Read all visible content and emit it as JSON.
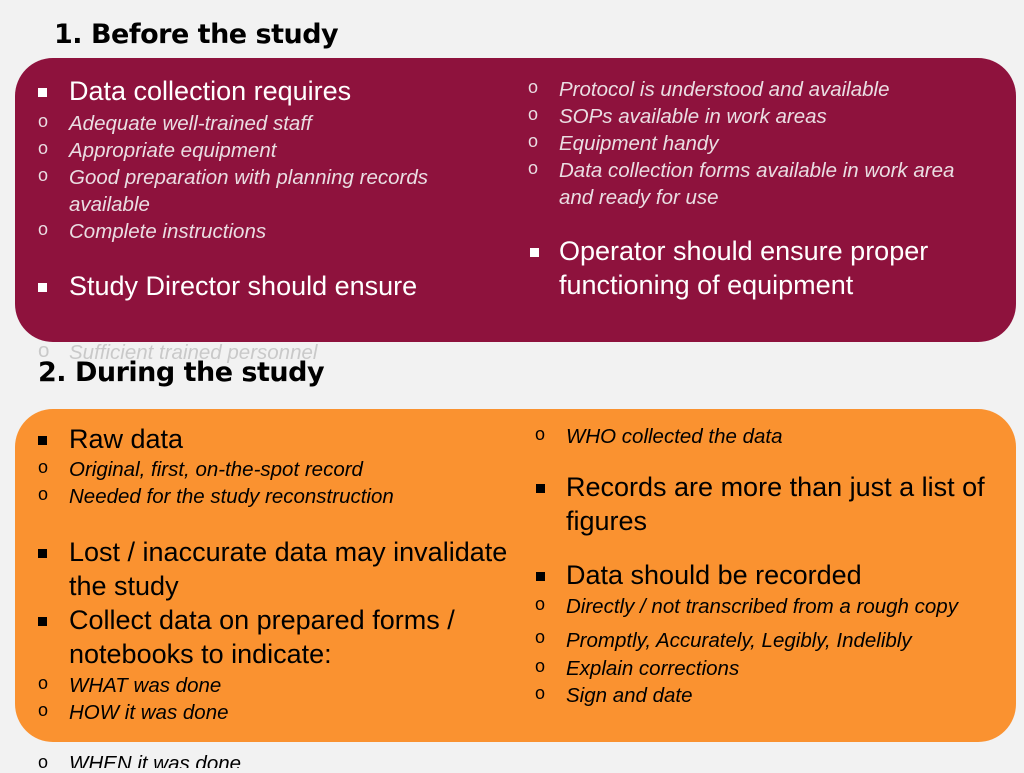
{
  "section1": {
    "heading": "1. Before the study",
    "left": {
      "bullet1": "Data collection requires",
      "subs": [
        "Adequate well-trained staff",
        "Appropriate equipment",
        "Good preparation with planning records",
        "available",
        "Complete instructions"
      ],
      "bullet2": "Study Director should ensure",
      "overflow_sub": "Sufficient trained personnel"
    },
    "right": {
      "subs": [
        "Protocol is understood and available",
        "SOPs available in work areas",
        "Equipment handy",
        "Data collection forms available in work area",
        "and ready for use"
      ],
      "bullet1_line1": "Operator should ensure proper",
      "bullet1_line2": "functioning of equipment"
    }
  },
  "section2": {
    "heading": "2. During the study",
    "left": {
      "bullet1": "Raw data",
      "subs1": [
        "Original, first, on-the-spot record",
        "Needed for the study reconstruction"
      ],
      "bullet2_line1": "Lost / inaccurate data may invalidate",
      "bullet2_line2": "the study",
      "bullet3_line1": "Collect data on prepared forms /",
      "bullet3_line2": "notebooks to indicate:",
      "subs2": [
        "WHAT was done",
        "HOW it was done"
      ],
      "overflow_sub": "WHEN it was done"
    },
    "right": {
      "sub_top": "WHO collected the data",
      "bullet1_line1": "Records are more than just a list of",
      "bullet1_line2": "figures",
      "bullet2": "Data should be recorded",
      "subs": [
        "Directly / not transcribed from a rough copy",
        "Promptly, Accurately, Legibly, Indelibly",
        "Explain corrections",
        "Sign and date"
      ]
    }
  },
  "markers": {
    "square": "▪",
    "circle": "o"
  },
  "colors": {
    "panel1": "#8e123d",
    "panel2": "#fa9230",
    "background": "#f2f2f2"
  }
}
